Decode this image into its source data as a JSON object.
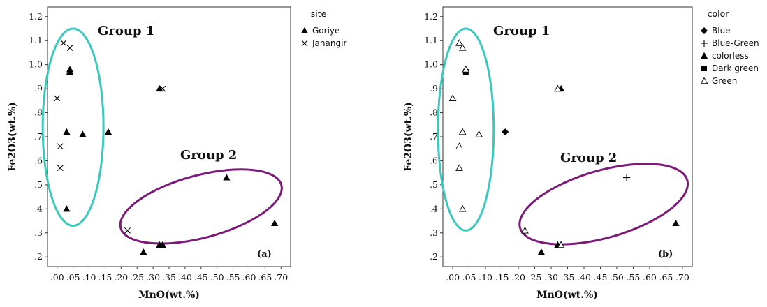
{
  "chart_data": [
    {
      "type": "scatter",
      "panel_label": "(a)",
      "xlabel": "MnO(wt.%)",
      "ylabel": "Fe2O3(wt.%)",
      "xlim": [
        -0.03,
        0.73
      ],
      "ylim": [
        0.16,
        1.24
      ],
      "xticks": [
        0.0,
        0.05,
        0.1,
        0.15,
        0.2,
        0.25,
        0.3,
        0.35,
        0.4,
        0.45,
        0.5,
        0.55,
        0.6,
        0.65,
        0.7
      ],
      "xtick_labels": [
        ".00",
        ".05",
        ".10",
        ".15",
        ".20",
        ".25",
        ".30",
        ".35",
        ".40",
        ".45",
        ".50",
        ".55",
        ".60",
        ".65",
        ".70"
      ],
      "yticks": [
        0.2,
        0.3,
        0.4,
        0.5,
        0.6,
        0.7,
        0.8,
        0.9,
        1.0,
        1.1,
        1.2
      ],
      "ytick_labels": [
        ".2",
        ".3",
        ".4",
        ".5",
        ".6",
        ".7",
        ".8",
        ".9",
        "1.0",
        "1.1",
        "1.2"
      ],
      "grid": false,
      "legend_title": "site",
      "legend_position": "right",
      "series": [
        {
          "name": "Goriye",
          "marker": "triangle-filled",
          "points": [
            [
              0.04,
              0.98
            ],
            [
              0.04,
              0.97
            ],
            [
              0.03,
              0.72
            ],
            [
              0.08,
              0.71
            ],
            [
              0.16,
              0.72
            ],
            [
              0.03,
              0.4
            ],
            [
              0.32,
              0.9
            ],
            [
              0.53,
              0.53
            ],
            [
              0.68,
              0.34
            ],
            [
              0.27,
              0.22
            ],
            [
              0.32,
              0.25
            ],
            [
              0.33,
              0.25
            ]
          ]
        },
        {
          "name": "Jahangir",
          "marker": "x",
          "points": [
            [
              0.02,
              1.09
            ],
            [
              0.04,
              1.07
            ],
            [
              0.0,
              0.86
            ],
            [
              0.01,
              0.66
            ],
            [
              0.01,
              0.57
            ],
            [
              0.22,
              0.31
            ],
            [
              0.33,
              0.9
            ]
          ]
        }
      ],
      "groups": [
        {
          "label": "Group 1",
          "color": "#3cc8bc",
          "cx": 0.05,
          "cy": 0.74,
          "rx": 0.095,
          "ry": 0.41
        },
        {
          "label": "Group 2",
          "color": "#7b1a78",
          "cx": 0.45,
          "cy": 0.41,
          "rx": 0.26,
          "ry": 0.13,
          "rotation_deg": -15
        }
      ]
    },
    {
      "type": "scatter",
      "panel_label": "(b)",
      "xlabel": "MnO(wt.%)",
      "ylabel": "Fe2O3(wt.%)",
      "xlim": [
        -0.03,
        0.73
      ],
      "ylim": [
        0.16,
        1.24
      ],
      "xticks": [
        0.0,
        0.05,
        0.1,
        0.15,
        0.2,
        0.25,
        0.3,
        0.35,
        0.4,
        0.45,
        0.5,
        0.55,
        0.6,
        0.65,
        0.7
      ],
      "xtick_labels": [
        ".00",
        ".05",
        ".10",
        ".15",
        ".20",
        ".25",
        ".30",
        ".35",
        ".40",
        ".45",
        ".50",
        ".55",
        ".60",
        ".65",
        ".70"
      ],
      "yticks": [
        0.2,
        0.3,
        0.4,
        0.5,
        0.6,
        0.7,
        0.8,
        0.9,
        1.0,
        1.1,
        1.2
      ],
      "ytick_labels": [
        ".2",
        ".3",
        ".4",
        ".5",
        ".6",
        ".7",
        ".8",
        ".9",
        "1.0",
        "1.1",
        "1.2"
      ],
      "grid": false,
      "legend_title": "color",
      "legend_position": "right",
      "series": [
        {
          "name": "Blue",
          "marker": "diamond-filled",
          "points": [
            [
              0.16,
              0.72
            ]
          ]
        },
        {
          "name": "Blue-Green",
          "marker": "plus",
          "points": [
            [
              0.53,
              0.53
            ]
          ]
        },
        {
          "name": "colorless",
          "marker": "triangle-filled",
          "points": [
            [
              0.33,
              0.9
            ],
            [
              0.68,
              0.34
            ],
            [
              0.27,
              0.22
            ],
            [
              0.32,
              0.25
            ]
          ]
        },
        {
          "name": "Dark green",
          "marker": "square-filled",
          "points": [
            [
              0.04,
              0.97
            ]
          ]
        },
        {
          "name": "Green",
          "marker": "triangle-open",
          "points": [
            [
              0.02,
              1.09
            ],
            [
              0.03,
              1.07
            ],
            [
              0.04,
              0.98
            ],
            [
              0.0,
              0.86
            ],
            [
              0.03,
              0.72
            ],
            [
              0.08,
              0.71
            ],
            [
              0.02,
              0.66
            ],
            [
              0.02,
              0.57
            ],
            [
              0.03,
              0.4
            ],
            [
              0.32,
              0.9
            ],
            [
              0.22,
              0.31
            ],
            [
              0.33,
              0.25
            ]
          ]
        }
      ],
      "groups": [
        {
          "label": "Group 1",
          "color": "#3cc8bc",
          "cx": 0.04,
          "cy": 0.73,
          "rx": 0.085,
          "ry": 0.42
        },
        {
          "label": "Group 2",
          "color": "#7b1a78",
          "cx": 0.46,
          "cy": 0.42,
          "rx": 0.265,
          "ry": 0.14,
          "rotation_deg": -16
        }
      ]
    }
  ]
}
